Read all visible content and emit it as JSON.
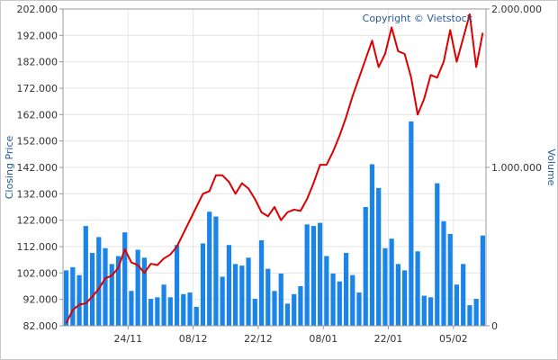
{
  "chart_data": {
    "type": "bar+line",
    "watermark": "Copyright © Vietstock",
    "ylabel_left": "Closing Price",
    "ylabel_right": "Volume",
    "price_ylim": [
      82000,
      202000
    ],
    "price_ticks": [
      "82.000",
      "92.000",
      "102.000",
      "112.000",
      "122.000",
      "132.000",
      "142.000",
      "152.000",
      "162.000",
      "172.000",
      "182.000",
      "192.000",
      "202.000"
    ],
    "volume_ylim": [
      0,
      2000000
    ],
    "volume_ticks": [
      "0",
      "1.000.000",
      "2.000.000"
    ],
    "x_ticks": [
      {
        "index": 10,
        "label": "24/11"
      },
      {
        "index": 20,
        "label": "08/12"
      },
      {
        "index": 30,
        "label": "22/12"
      },
      {
        "index": 40,
        "label": "08/01"
      },
      {
        "index": 50,
        "label": "22/01"
      },
      {
        "index": 60,
        "label": "05/02"
      }
    ],
    "grid": true,
    "colors": {
      "bar": "#1a84e8",
      "line": "#dd0000",
      "axis_text": "#333333",
      "axis_title": "#1f5a9a",
      "grid": "#e6e6e6",
      "border": "#999999"
    },
    "series": [
      {
        "name": "Volume",
        "kind": "bar",
        "values": [
          350000,
          370000,
          320000,
          630000,
          460000,
          560000,
          490000,
          390000,
          440000,
          590000,
          220000,
          480000,
          430000,
          170000,
          180000,
          260000,
          180000,
          510000,
          200000,
          210000,
          120000,
          520000,
          720000,
          690000,
          310000,
          510000,
          390000,
          380000,
          430000,
          170000,
          540000,
          360000,
          220000,
          330000,
          140000,
          200000,
          250000,
          640000,
          630000,
          650000,
          440000,
          330000,
          280000,
          460000,
          320000,
          210000,
          750000,
          1020000,
          870000,
          490000,
          550000,
          390000,
          350000,
          1290000,
          470000,
          190000,
          180000,
          900000,
          660000,
          580000,
          260000,
          390000,
          130000,
          170000,
          570000
        ]
      },
      {
        "name": "Closing Price",
        "kind": "line",
        "values": [
          83000,
          88000,
          90000,
          90500,
          93000,
          96000,
          100000,
          101000,
          104000,
          111000,
          106000,
          105000,
          102000,
          105500,
          105000,
          107500,
          109000,
          112000,
          117000,
          122000,
          127000,
          132000,
          133000,
          139000,
          139000,
          136500,
          132000,
          136000,
          134000,
          130000,
          125000,
          123500,
          127000,
          122000,
          125000,
          126000,
          125500,
          130000,
          136000,
          143000,
          143000,
          148000,
          154000,
          161000,
          169000,
          176000,
          183000,
          190000,
          180000,
          185000,
          195000,
          186000,
          185000,
          176000,
          162000,
          168000,
          177000,
          176000,
          182000,
          194000,
          182000,
          191000,
          200000,
          180000,
          193000
        ]
      }
    ]
  }
}
